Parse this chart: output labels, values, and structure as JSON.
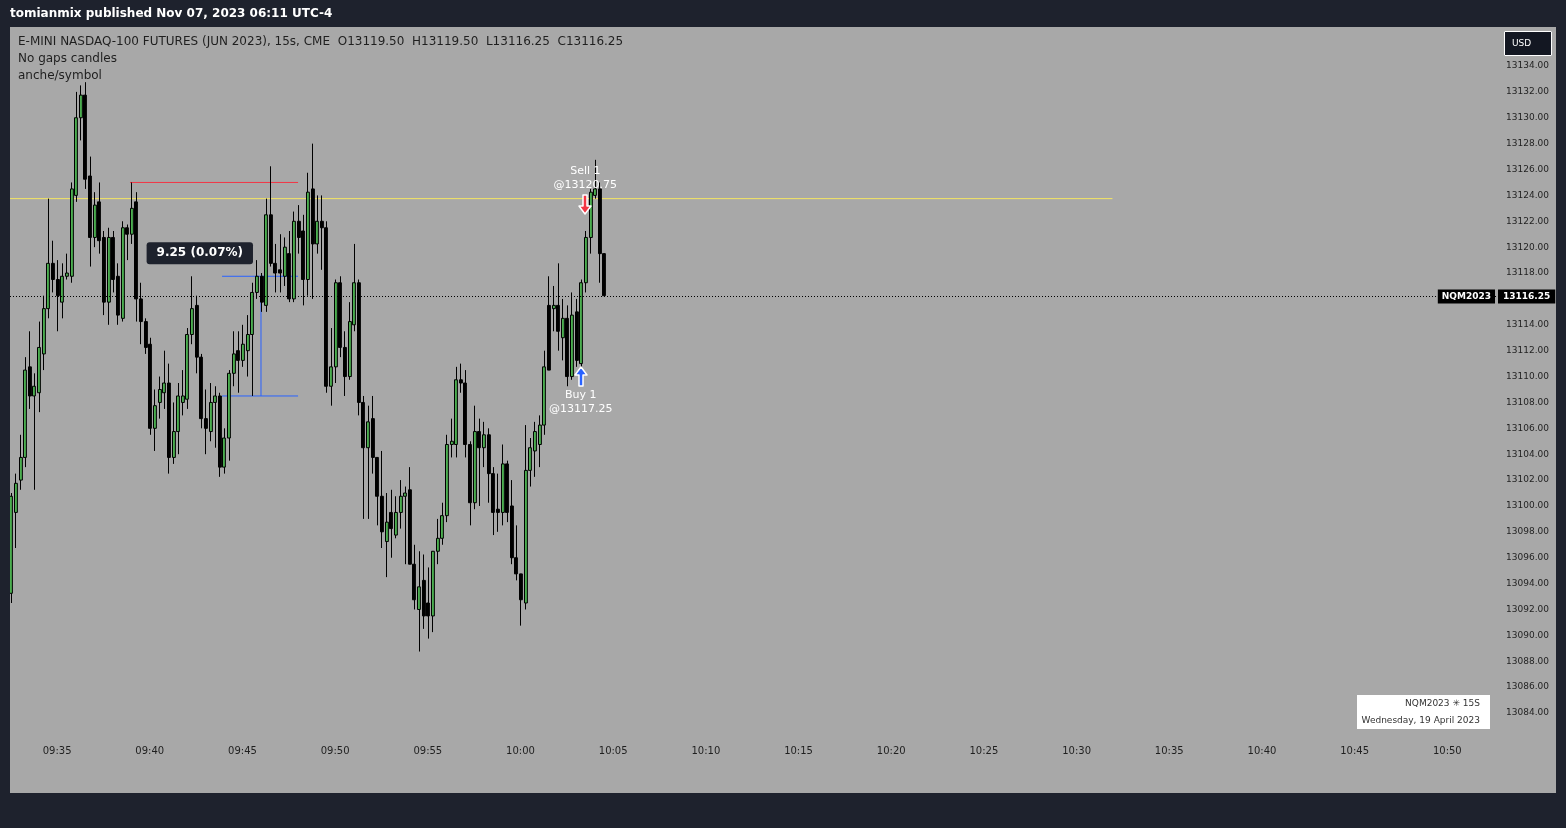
{
  "chart_data": {
    "type": "candlestick",
    "title": "E-MINI NASDAQ-100 FUTURES (JUN 2023), 15s, CME  O13119.50  H13119.50  L13116.25  C13116.25",
    "subtitle": "No gaps candles",
    "x": [
      9.54167,
      9.54583,
      9.55,
      9.55417,
      9.55833,
      9.5625,
      9.56667,
      9.57083,
      9.575,
      9.57917,
      9.58333,
      9.5875,
      9.59167,
      9.59583,
      9.6,
      9.60417,
      9.60833,
      9.6125,
      9.61667,
      9.62083,
      9.625,
      9.62917,
      9.63333,
      9.6375,
      9.64167,
      9.64583,
      9.65,
      9.65417,
      9.65833,
      9.6625,
      9.66667,
      9.67083,
      9.675,
      9.67917,
      9.68333,
      9.6875,
      9.69167,
      9.69583,
      9.7,
      9.70417,
      9.70833,
      9.7125,
      9.71667,
      9.72083,
      9.725,
      9.72917,
      9.73333,
      9.7375,
      9.74167,
      9.74583,
      9.75,
      9.75417,
      9.75833,
      9.7625,
      9.76667,
      9.77083,
      9.775,
      9.77917,
      9.78333,
      9.7875,
      9.79167,
      9.79583,
      9.8,
      9.80417,
      9.80833,
      9.8125,
      9.81667,
      9.82083,
      9.825,
      9.82917,
      9.83333,
      9.8375,
      9.84167,
      9.84583,
      9.85,
      9.85417,
      9.85833,
      9.8625,
      9.86667,
      9.87083,
      9.875,
      9.87917,
      9.88333,
      9.8875,
      9.89167,
      9.89583,
      9.9,
      9.90417,
      9.90833,
      9.9125,
      9.91667,
      9.92083,
      9.925,
      9.92917,
      9.93333,
      9.9375,
      9.94167,
      9.94583,
      9.95,
      9.95417,
      9.95833,
      9.9625,
      9.96667,
      9.97083,
      9.975,
      9.97917,
      9.98333,
      9.9875,
      9.99167,
      9.99583,
      10,
      10.00417,
      10.00833,
      10.0125,
      10.01667,
      10.02083,
      10.025,
      10.02917,
      10.03333,
      10.0375,
      10.04167,
      10.04583,
      10.05,
      10.05417,
      10.05833,
      10.0625,
      10.06667,
      10.07083,
      10.075
    ],
    "ohlc": [
      [
        13093.25,
        13101,
        13092.5,
        13100.75
      ],
      [
        13099.5,
        13102.5,
        13096.75,
        13101.75
      ],
      [
        13102,
        13105.5,
        13101.25,
        13103.75
      ],
      [
        13103.75,
        13111.5,
        13103,
        13110.5
      ],
      [
        13110.75,
        13113.5,
        13107.5,
        13108.5
      ],
      [
        13108.5,
        13110.25,
        13101.25,
        13109.25
      ],
      [
        13108.75,
        13114.25,
        13107.25,
        13112.25
      ],
      [
        13111.75,
        13116.25,
        13110.5,
        13115.25
      ],
      [
        13115.25,
        13123.75,
        13114.5,
        13118.75
      ],
      [
        13118.75,
        13120.5,
        13116.5,
        13117.5
      ],
      [
        13117.5,
        13119,
        13113.5,
        13116.25
      ],
      [
        13115.75,
        13118.75,
        13114.5,
        13117.75
      ],
      [
        13117.75,
        13119.5,
        13117.5,
        13118
      ],
      [
        13117.75,
        13125,
        13117.25,
        13124.5
      ],
      [
        13124,
        13132,
        13123.5,
        13130
      ],
      [
        13130,
        13132.5,
        13128.25,
        13131.75
      ],
      [
        13131.75,
        13132.75,
        13124.5,
        13125.25
      ],
      [
        13125.5,
        13127,
        13118.5,
        13120.75
      ],
      [
        13120.75,
        13124.25,
        13120,
        13123.25
      ],
      [
        13123.5,
        13125,
        13119.5,
        13120.5
      ],
      [
        13120.75,
        13121.25,
        13114.75,
        13115.75
      ],
      [
        13115.75,
        13121.5,
        13114,
        13120.75
      ],
      [
        13120.75,
        13121.25,
        13116.5,
        13117.5
      ],
      [
        13117.75,
        13118.75,
        13114,
        13114.75
      ],
      [
        13114.5,
        13122,
        13114.25,
        13121.5
      ],
      [
        13121.5,
        13121.75,
        13119,
        13121
      ],
      [
        13121,
        13125,
        13120.25,
        13123
      ],
      [
        13123.5,
        13124.25,
        13114.25,
        13116
      ],
      [
        13116,
        13117.25,
        13112.5,
        13114.25
      ],
      [
        13114.25,
        13114.5,
        13111.75,
        13112.25
      ],
      [
        13112.5,
        13113,
        13105.5,
        13106
      ],
      [
        13106,
        13109,
        13104.25,
        13107.75
      ],
      [
        13108,
        13110,
        13106.75,
        13109
      ],
      [
        13108.75,
        13112,
        13107.5,
        13109.5
      ],
      [
        13109.5,
        13111,
        13102.5,
        13103.75
      ],
      [
        13103.75,
        13108,
        13103.25,
        13105.75
      ],
      [
        13105.75,
        13109.5,
        13104,
        13108.5
      ],
      [
        13108,
        13110.5,
        13107,
        13108.5
      ],
      [
        13108.25,
        13113.75,
        13107.5,
        13113.25
      ],
      [
        13113.25,
        13117.75,
        13112.5,
        13115.25
      ],
      [
        13115.5,
        13116.25,
        13110.25,
        13111.5
      ],
      [
        13111.5,
        13111.75,
        13106,
        13106.75
      ],
      [
        13106.75,
        13109,
        13104,
        13106
      ],
      [
        13105.75,
        13109.5,
        13105,
        13108
      ],
      [
        13108,
        13109.25,
        13104.5,
        13108.5
      ],
      [
        13108.5,
        13108.75,
        13102.25,
        13103
      ],
      [
        13103,
        13106,
        13102.5,
        13105.25
      ],
      [
        13105.25,
        13110.5,
        13103.5,
        13110.25
      ],
      [
        13110.25,
        13113.5,
        13109.25,
        13111.75
      ],
      [
        13112,
        13113.5,
        13108.75,
        13111.25
      ],
      [
        13111.25,
        13114,
        13110.75,
        13112.5
      ],
      [
        13112,
        13114.75,
        13110,
        13113.25
      ],
      [
        13113.25,
        13117.25,
        13108.5,
        13116.5
      ],
      [
        13116.5,
        13119,
        13116,
        13117.75
      ],
      [
        13117.75,
        13118,
        13115,
        13115.75
      ],
      [
        13115.5,
        13123.75,
        13115,
        13122.5
      ],
      [
        13122.5,
        13126.25,
        13118.5,
        13118.75
      ],
      [
        13118.75,
        13120.25,
        13116.5,
        13118
      ],
      [
        13118.25,
        13121,
        13116.5,
        13118
      ],
      [
        13117.75,
        13120.75,
        13117,
        13120
      ],
      [
        13119.5,
        13121.25,
        13115.75,
        13116
      ],
      [
        13116,
        13122.75,
        13115.75,
        13122
      ],
      [
        13122,
        13123.25,
        13119.5,
        13120.75
      ],
      [
        13121.25,
        13122.5,
        13115.5,
        13117.5
      ],
      [
        13117.5,
        13125.75,
        13116.25,
        13124.25
      ],
      [
        13124.5,
        13128,
        13116,
        13120.25
      ],
      [
        13120.25,
        13124,
        13119.5,
        13122
      ],
      [
        13122,
        13124,
        13118.25,
        13121.5
      ],
      [
        13121.5,
        13122,
        13108.75,
        13109.25
      ],
      [
        13109.25,
        13113.75,
        13107.75,
        13110.75
      ],
      [
        13110.75,
        13117.5,
        13109.5,
        13117.25
      ],
      [
        13117.25,
        13117.75,
        13111.5,
        13112.25
      ],
      [
        13112.25,
        13113.5,
        13108.5,
        13110
      ],
      [
        13110,
        13115.75,
        13109.75,
        13114.25
      ],
      [
        13114,
        13120.25,
        13113.5,
        13117.25
      ],
      [
        13117.25,
        13117.5,
        13107,
        13108
      ],
      [
        13108,
        13108.5,
        13099,
        13104.5
      ],
      [
        13104.5,
        13107.75,
        13099,
        13106.5
      ],
      [
        13106.75,
        13108.5,
        13102.5,
        13103.75
      ],
      [
        13103.75,
        13103.75,
        13098.5,
        13100.75
      ],
      [
        13100.75,
        13104.25,
        13096.75,
        13098
      ],
      [
        13097.25,
        13101,
        13094.5,
        13098.75
      ],
      [
        13099.5,
        13101.25,
        13096,
        13098.25
      ],
      [
        13097.75,
        13100.75,
        13097.5,
        13099.5
      ],
      [
        13099.5,
        13102,
        13098.25,
        13100.75
      ],
      [
        13100.75,
        13101.5,
        13095.5,
        13101
      ],
      [
        13101.25,
        13103,
        13095.5,
        13095.5
      ],
      [
        13095.5,
        13097,
        13092,
        13092.75
      ],
      [
        13092,
        13096.5,
        13088.75,
        13093.75
      ],
      [
        13094.25,
        13096.25,
        13090.5,
        13091.5
      ],
      [
        13092.5,
        13095.25,
        13089.75,
        13091.5
      ],
      [
        13091.5,
        13096.5,
        13090.25,
        13096.5
      ],
      [
        13096.5,
        13099,
        13095.5,
        13097.5
      ],
      [
        13097.5,
        13100.25,
        13097,
        13099.25
      ],
      [
        13099.25,
        13105.5,
        13098.75,
        13104.75
      ],
      [
        13104.75,
        13106.75,
        13103.75,
        13105
      ],
      [
        13104.75,
        13110.75,
        13103.75,
        13109.75
      ],
      [
        13109.75,
        13111,
        13108.75,
        13109.5
      ],
      [
        13109.5,
        13110.5,
        13103.75,
        13104.75
      ],
      [
        13104.75,
        13105,
        13098.5,
        13100.25
      ],
      [
        13100.25,
        13107.75,
        13099.75,
        13105.75
      ],
      [
        13105.75,
        13106.75,
        13100,
        13104.5
      ],
      [
        13104.5,
        13106.5,
        13103,
        13105.5
      ],
      [
        13105.5,
        13106,
        13100.25,
        13102.5
      ],
      [
        13102.5,
        13103,
        13097.75,
        13099.5
      ],
      [
        13099.75,
        13102.5,
        13098,
        13099.5
      ],
      [
        13099.5,
        13104.75,
        13098.5,
        13103.25
      ],
      [
        13103.25,
        13103.5,
        13098.75,
        13099.5
      ],
      [
        13100,
        13102,
        13095.5,
        13096
      ],
      [
        13096,
        13098.5,
        13094.25,
        13094.75
      ],
      [
        13094.75,
        13094.75,
        13090.75,
        13092.75
      ],
      [
        13092.5,
        13106.25,
        13092,
        13102.75
      ],
      [
        13102.75,
        13105.25,
        13101.5,
        13104.5
      ],
      [
        13104.25,
        13106.5,
        13102.25,
        13105.75
      ],
      [
        13104.75,
        13107,
        13103,
        13106.25
      ],
      [
        13106.25,
        13112,
        13105.5,
        13110.75
      ],
      [
        13115.5,
        13117.75,
        13110.5,
        13110.5
      ],
      [
        13115.25,
        13117,
        13113.5,
        13115.5
      ],
      [
        13115.5,
        13118.75,
        13112,
        13113.5
      ],
      [
        13113,
        13116,
        13111.25,
        13114.5
      ],
      [
        13114.5,
        13115.5,
        13109.25,
        13110
      ],
      [
        13110,
        13116.5,
        13109.75,
        13114.75
      ],
      [
        13115,
        13116,
        13110.75,
        13111.25
      ],
      [
        13111,
        13117.5,
        13110.75,
        13117.25
      ],
      [
        13117.25,
        13121.25,
        13116.5,
        13120.75
      ],
      [
        13120.75,
        13124.5,
        13119.5,
        13124.25
      ],
      [
        13124,
        13126.75,
        13123.75,
        13124.5
      ],
      [
        13124.5,
        13125,
        13117.25,
        13119.5
      ],
      [
        13119.5,
        13119.5,
        13116.25,
        13116.25
      ]
    ],
    "xlim": [
      9.541,
      10.878
    ],
    "xticks": [
      {
        "value": 9.58333,
        "label": "09:35"
      },
      {
        "value": 9.66667,
        "label": "09:40"
      },
      {
        "value": 9.75,
        "label": "09:45"
      },
      {
        "value": 9.83333,
        "label": "09:50"
      },
      {
        "value": 9.91667,
        "label": "09:55"
      },
      {
        "value": 10,
        "label": "10:00"
      },
      {
        "value": 10.08333,
        "label": "10:05"
      },
      {
        "value": 10.16667,
        "label": "10:10"
      },
      {
        "value": 10.25,
        "label": "10:15"
      },
      {
        "value": 10.33333,
        "label": "10:20"
      },
      {
        "value": 10.41667,
        "label": "10:25"
      },
      {
        "value": 10.5,
        "label": "10:30"
      },
      {
        "value": 10.58333,
        "label": "10:35"
      },
      {
        "value": 10.66667,
        "label": "10:40"
      },
      {
        "value": 10.75,
        "label": "10:45"
      },
      {
        "value": 10.83333,
        "label": "10:50"
      }
    ],
    "ylim": [
      13084,
      13134
    ],
    "yticks": [
      {
        "value": 13084,
        "label": "13084.00"
      },
      {
        "value": 13086,
        "label": "13086.00"
      },
      {
        "value": 13088,
        "label": "13088.00"
      },
      {
        "value": 13090,
        "label": "13090.00"
      },
      {
        "value": 13092,
        "label": "13092.00"
      },
      {
        "value": 13094,
        "label": "13094.00"
      },
      {
        "value": 13096,
        "label": "13096.00"
      },
      {
        "value": 13098,
        "label": "13098.00"
      },
      {
        "value": 13100,
        "label": "13100.00"
      },
      {
        "value": 13102,
        "label": "13102.00"
      },
      {
        "value": 13104,
        "label": "13104.00"
      },
      {
        "value": 13106,
        "label": "13106.00"
      },
      {
        "value": 13108,
        "label": "13108.00"
      },
      {
        "value": 13110,
        "label": "13110.00"
      },
      {
        "value": 13112,
        "label": "13112.00"
      },
      {
        "value": 13114,
        "label": "13114.00"
      },
      {
        "value": 13118,
        "label": "13118.00"
      },
      {
        "value": 13120,
        "label": "13120.00"
      },
      {
        "value": 13122,
        "label": "13122.00"
      },
      {
        "value": 13124,
        "label": "13124.00"
      },
      {
        "value": 13126,
        "label": "13126.00"
      },
      {
        "value": 13128,
        "label": "13128.00"
      },
      {
        "value": 13130,
        "label": "13130.00"
      },
      {
        "value": 13132,
        "label": "13132.00"
      },
      {
        "value": 13134,
        "label": "13134.00"
      }
    ],
    "series": [
      {
        "type": "line",
        "x": [
          9.64889,
          9.8
        ],
        "values": [
          13125,
          13125
        ],
        "color": "#f23645"
      },
      {
        "type": "line",
        "x": [
          9.541,
          10.53222
        ],
        "values": [
          13123.75,
          13123.75
        ],
        "color": "#f5e663"
      },
      {
        "type": "line",
        "x": [
          9.73167,
          9.8
        ],
        "values": [
          13117.75,
          13117.75
        ],
        "color": "#2962ff"
      },
      {
        "type": "line",
        "x": [
          9.73167,
          9.8
        ],
        "values": [
          13108.5,
          13108.5
        ],
        "color": "#2962ff"
      },
      {
        "type": "line",
        "x": [
          9.76667,
          9.76667
        ],
        "values": [
          13108.5,
          13117.75
        ],
        "color": "#2962ff"
      }
    ],
    "ref_lines": [
      {
        "axis": "y",
        "value": 13116.25,
        "label": "NQM2023",
        "color": "#000000",
        "line_style": "dotted"
      }
    ],
    "annotations": [
      "tomianmix published Nov 07, 2023 06:11 UTC-4",
      "anche/symbol",
      "USD",
      "NQM2023 ✳ 15S",
      "Wednesday, 19 April 2023",
      {
        "text": "Sell 1\n@13120.75",
        "x": 10.05833,
        "y": 13122.5
      },
      {
        "text": "Buy 1\n@13117.25",
        "x": 10.05417,
        "y": 13110.75
      },
      {
        "text": "9.25 (0.07%)",
        "x": 9.76667,
        "y": 13117.75
      },
      "13116.25"
    ]
  }
}
